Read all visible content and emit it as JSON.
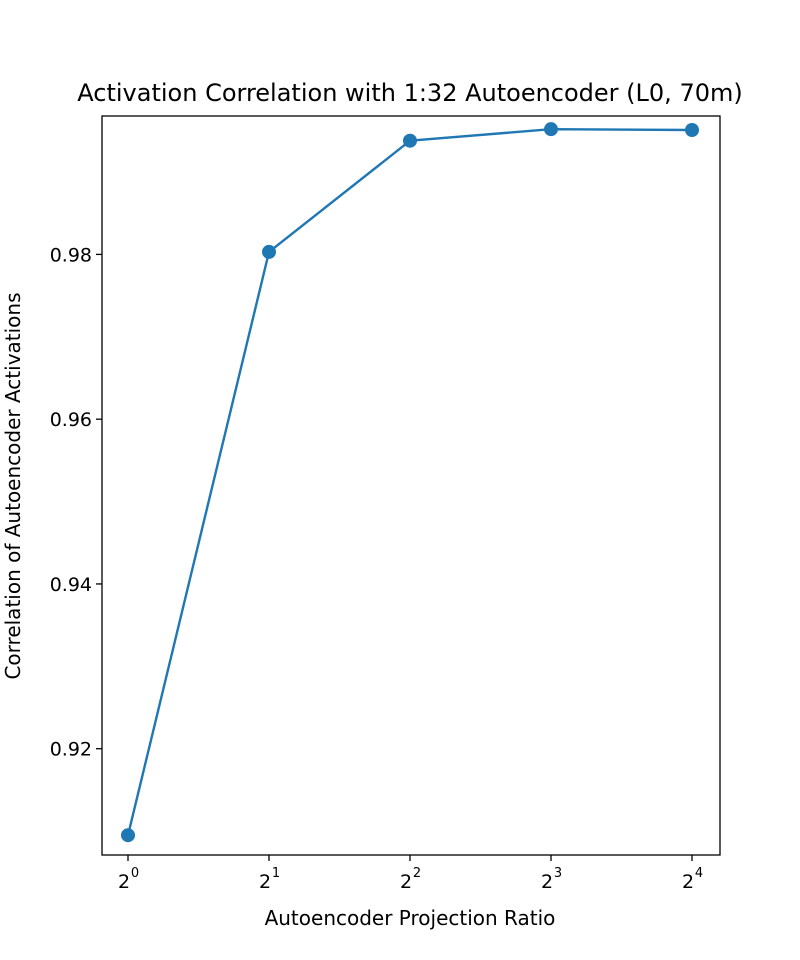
{
  "chart_data": {
    "type": "line",
    "title": "Activation Correlation with 1:32 Autoencoder (L0, 70m)",
    "xlabel": "Autoencoder Projection Ratio",
    "ylabel": "Correlation of Autoencoder Activations",
    "x_scale": "log2",
    "x": [
      1,
      2,
      4,
      8,
      16
    ],
    "x_tick_labels": [
      {
        "base": "2",
        "exp": "0"
      },
      {
        "base": "2",
        "exp": "1"
      },
      {
        "base": "2",
        "exp": "2"
      },
      {
        "base": "2",
        "exp": "3"
      },
      {
        "base": "2",
        "exp": "4"
      }
    ],
    "series": [
      {
        "values": [
          0.9095,
          0.9803,
          0.9938,
          0.9952,
          0.9951
        ],
        "color": "#1f77b4",
        "marker": "circle"
      }
    ],
    "y_ticks": [
      0.92,
      0.94,
      0.96,
      0.98
    ],
    "y_tick_labels": [
      "0.92",
      "0.94",
      "0.96",
      "0.98"
    ],
    "ylim": [
      0.9071,
      0.9968
    ],
    "grid": false,
    "legend": "none"
  }
}
